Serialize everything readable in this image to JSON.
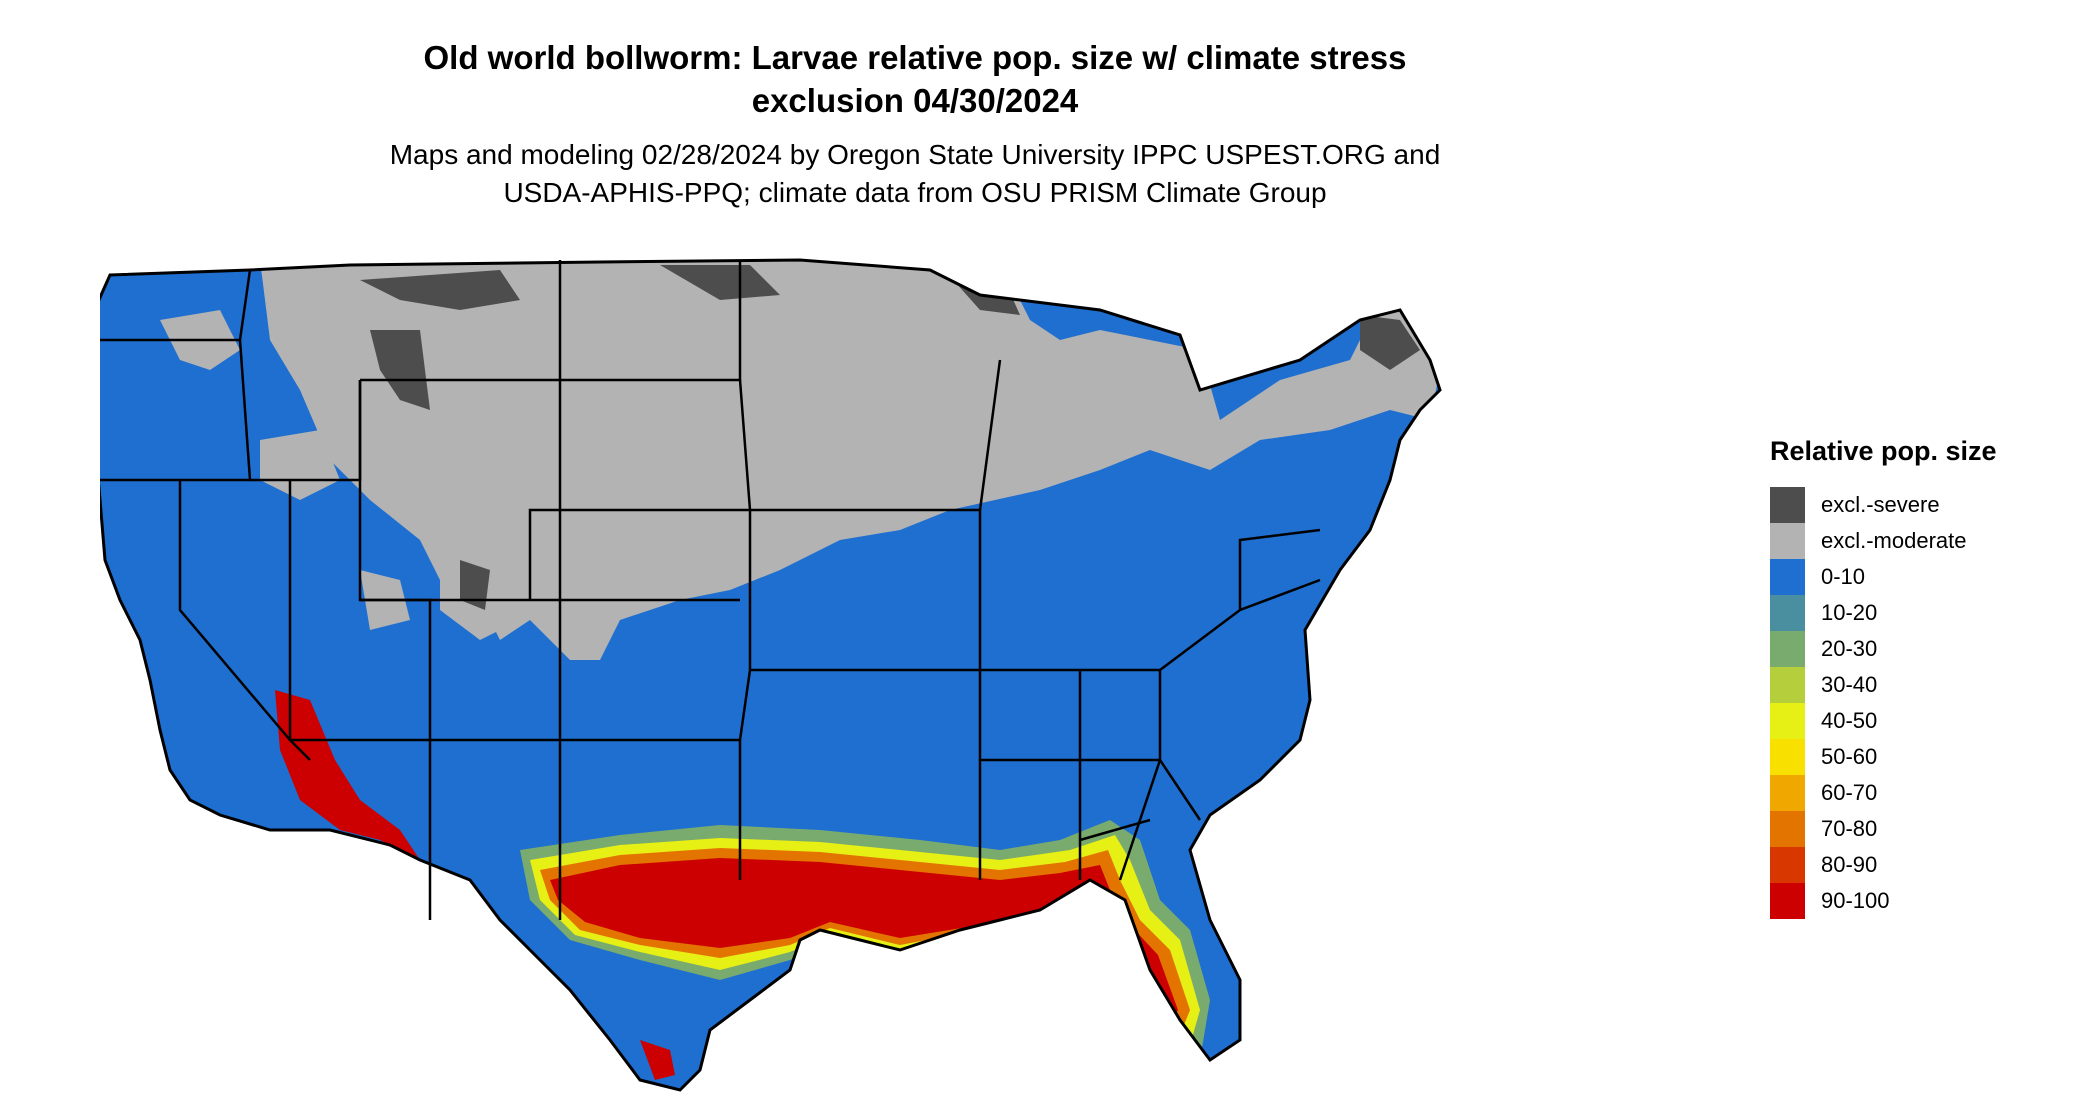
{
  "title_line1": "Old world bollworm: Larvae relative pop. size w/ climate stress",
  "title_line2": "exclusion 04/30/2024",
  "subtitle_line1": "Maps and modeling 02/28/2024 by Oregon State University IPPC USPEST.ORG and",
  "subtitle_line2": "USDA-APHIS-PPQ; climate data from OSU PRISM Climate Group",
  "legend": {
    "title": "Relative pop. size",
    "items": [
      {
        "label": "excl.-severe",
        "color": "#4d4d4d"
      },
      {
        "label": "excl.-moderate",
        "color": "#b3b3b3"
      },
      {
        "label": "0-10",
        "color": "#1e6fd0"
      },
      {
        "label": "10-20",
        "color": "#4a8fa0"
      },
      {
        "label": "20-30",
        "color": "#7aab6e"
      },
      {
        "label": "30-40",
        "color": "#b5cf3c"
      },
      {
        "label": "40-50",
        "color": "#e6f014"
      },
      {
        "label": "50-60",
        "color": "#f8e000"
      },
      {
        "label": "60-70",
        "color": "#f0a800"
      },
      {
        "label": "70-80",
        "color": "#e47400"
      },
      {
        "label": "80-90",
        "color": "#d83800"
      },
      {
        "label": "90-100",
        "color": "#cc0000"
      }
    ]
  }
}
